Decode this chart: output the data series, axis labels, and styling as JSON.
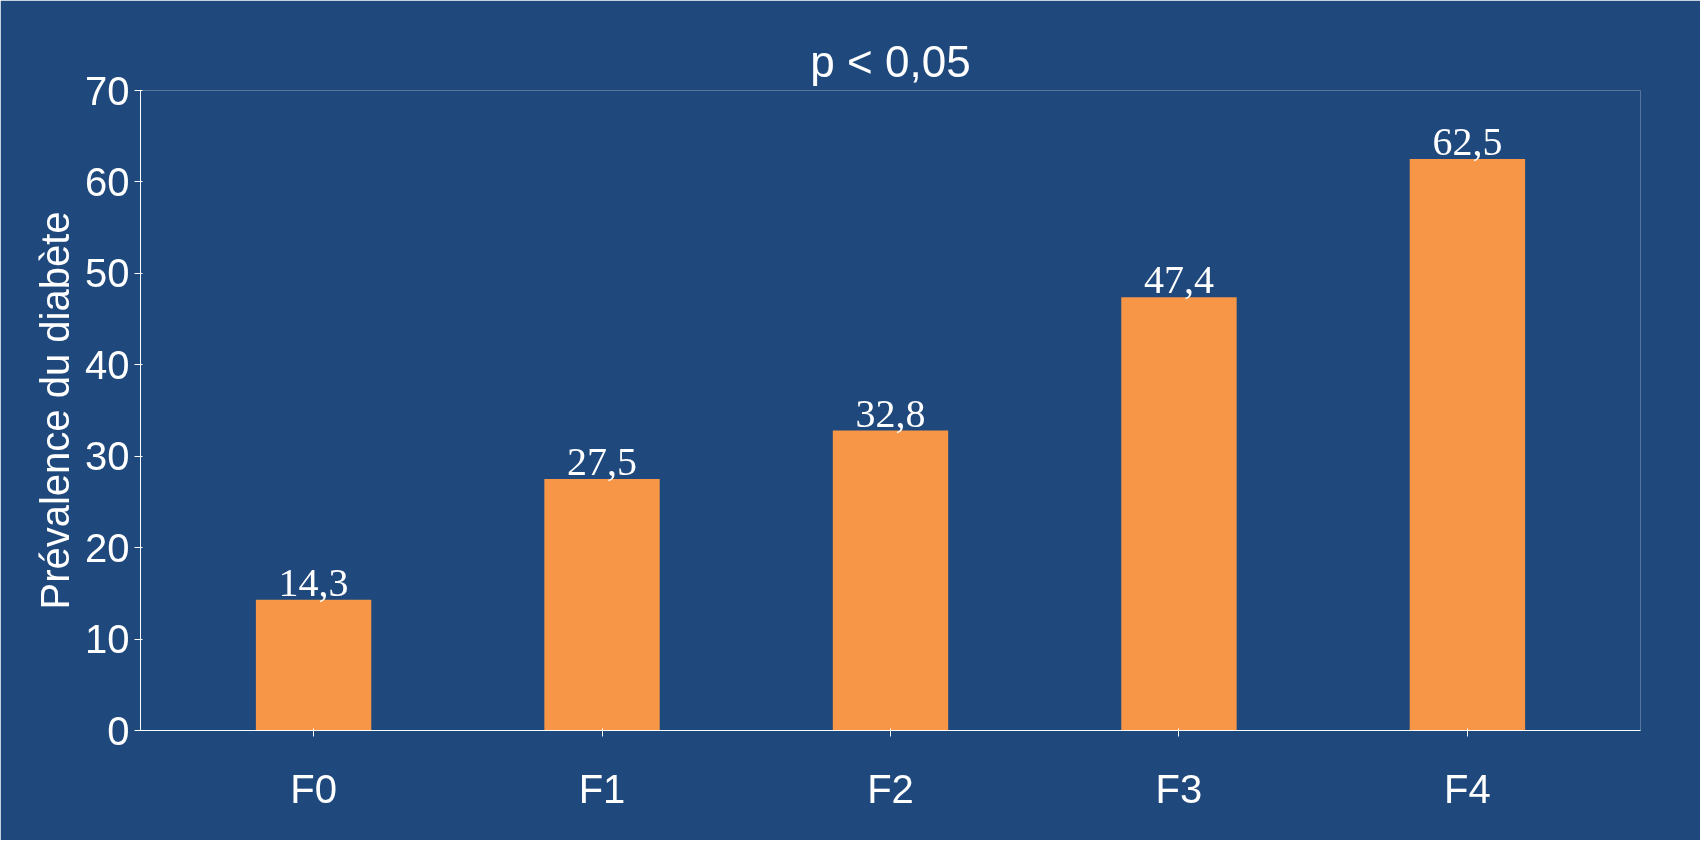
{
  "chart_data": {
    "type": "bar",
    "title": "p < 0,05",
    "ylabel": "Prévalence du diabète",
    "categories": [
      "F0",
      "F1",
      "F2",
      "F3",
      "F4"
    ],
    "values": [
      14.3,
      27.5,
      32.8,
      47.4,
      62.5
    ],
    "value_labels": [
      "14,3",
      "27,5",
      "32,8",
      "47,4",
      "62,5"
    ],
    "color": "#f79646",
    "ylim": [
      0,
      70
    ],
    "yticks": [
      0,
      10,
      20,
      30,
      40,
      50,
      60,
      70
    ],
    "grid": false
  }
}
